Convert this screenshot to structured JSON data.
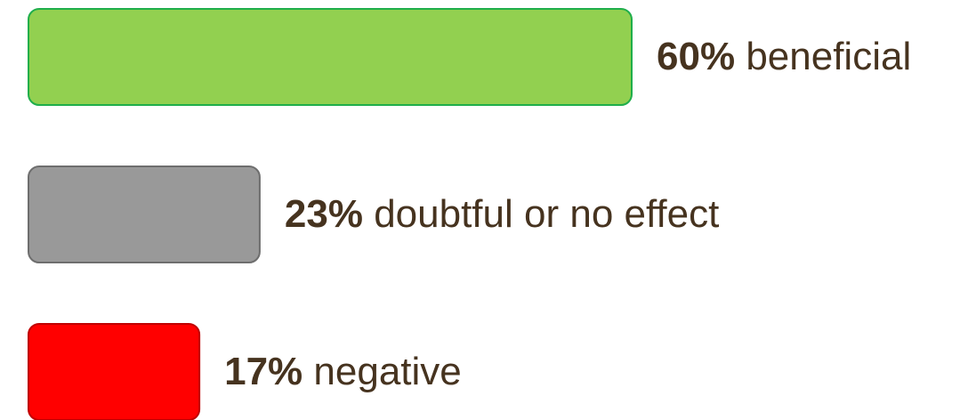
{
  "chart_data": {
    "type": "bar",
    "categories": [
      "beneficial",
      "doubtful or no effect",
      "negative"
    ],
    "values": [
      60,
      23,
      17
    ],
    "value_labels": [
      "60%",
      "23%",
      "17%"
    ],
    "colors": [
      "#92d050",
      "#999999",
      "#ff0000"
    ],
    "edge_colors": [
      "#1fae4b",
      "#6e6e6e",
      "#c00000"
    ]
  }
}
